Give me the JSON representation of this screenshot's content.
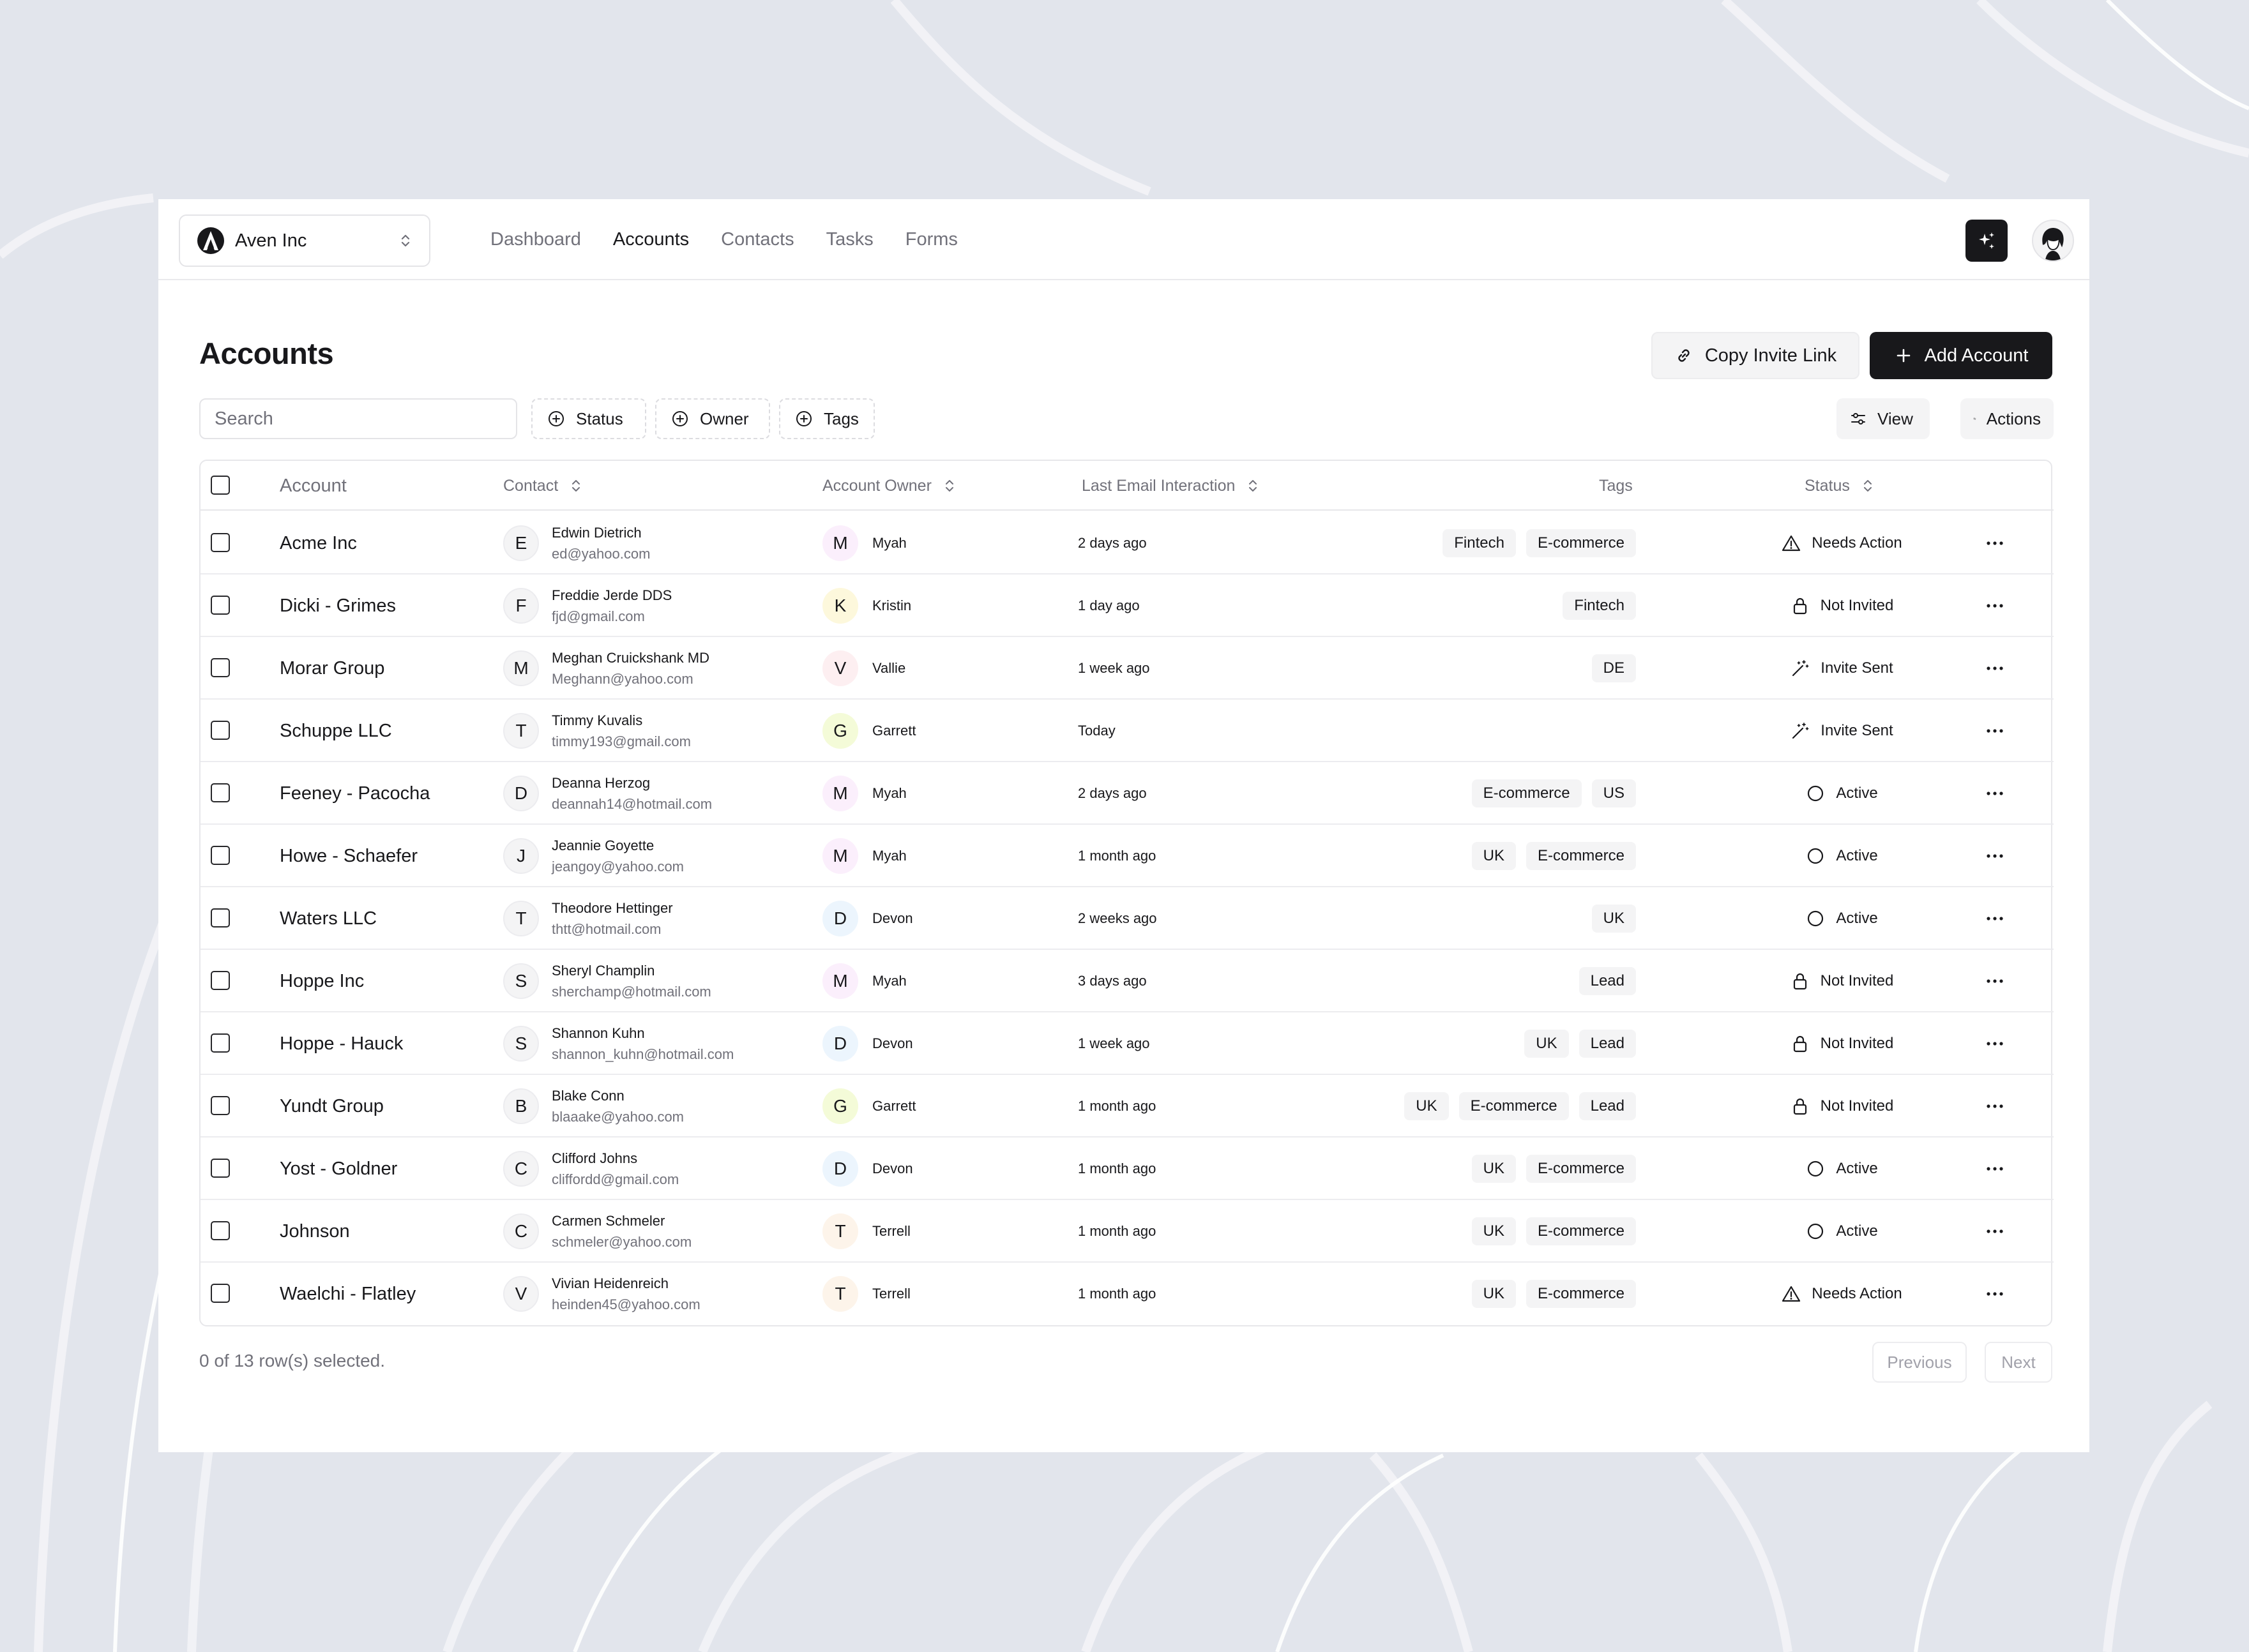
{
  "org": {
    "name": "Aven Inc"
  },
  "nav": {
    "links": [
      {
        "label": "Dashboard",
        "active": false
      },
      {
        "label": "Accounts",
        "active": true
      },
      {
        "label": "Contacts",
        "active": false
      },
      {
        "label": "Tasks",
        "active": false
      },
      {
        "label": "Forms",
        "active": false
      }
    ]
  },
  "page": {
    "title": "Accounts",
    "copy_invite_label": "Copy Invite Link",
    "add_account_label": "Add Account"
  },
  "filters": {
    "search_placeholder": "Search",
    "status_label": "Status",
    "owner_label": "Owner",
    "tags_label": "Tags",
    "view_label": "View",
    "actions_label": "Actions"
  },
  "table": {
    "columns": [
      "Account",
      "Contact",
      "Account Owner",
      "Last Email Interaction",
      "Tags",
      "Status"
    ],
    "rows": [
      {
        "account": "Acme Inc",
        "contact_initial": "E",
        "contact_name": "Edwin Dietrich",
        "contact_email": "ed@yahoo.com",
        "owner_initial": "M",
        "owner": "Myah",
        "owner_color": "#fbeffc",
        "last_email": "2 days ago",
        "tags": [
          "Fintech",
          "E-commerce"
        ],
        "status": "Needs Action",
        "status_icon": "warning-icon"
      },
      {
        "account": "Dicki - Grimes",
        "contact_initial": "F",
        "contact_name": "Freddie Jerde DDS",
        "contact_email": "fjd@gmail.com",
        "owner_initial": "K",
        "owner": "Kristin",
        "owner_color": "#fdf8dc",
        "last_email": "1 day ago",
        "tags": [
          "Fintech"
        ],
        "status": "Not Invited",
        "status_icon": "lock-icon"
      },
      {
        "account": "Morar Group",
        "contact_initial": "M",
        "contact_name": "Meghan Cruickshank MD",
        "contact_email": "Meghann@yahoo.com",
        "owner_initial": "V",
        "owner": "Vallie",
        "owner_color": "#fdeff1",
        "last_email": "1 week ago",
        "tags": [
          "DE"
        ],
        "status": "Invite Sent",
        "status_icon": "wand-icon"
      },
      {
        "account": "Schuppe LLC",
        "contact_initial": "T",
        "contact_name": "Timmy Kuvalis",
        "contact_email": "timmy193@gmail.com",
        "owner_initial": "G",
        "owner": "Garrett",
        "owner_color": "#f4fbd8",
        "last_email": "Today",
        "tags": [],
        "status": "Invite Sent",
        "status_icon": "wand-icon"
      },
      {
        "account": "Feeney - Pacocha",
        "contact_initial": "D",
        "contact_name": "Deanna Herzog",
        "contact_email": "deannah14@hotmail.com",
        "owner_initial": "M",
        "owner": "Myah",
        "owner_color": "#fbeffc",
        "last_email": "2 days ago",
        "tags": [
          "E-commerce",
          "US"
        ],
        "status": "Active",
        "status_icon": "circle-icon"
      },
      {
        "account": "Howe - Schaefer",
        "contact_initial": "J",
        "contact_name": "Jeannie Goyette",
        "contact_email": "jeangoy@yahoo.com",
        "owner_initial": "M",
        "owner": "Myah",
        "owner_color": "#fbeffc",
        "last_email": "1 month ago",
        "tags": [
          "UK",
          "E-commerce"
        ],
        "status": "Active",
        "status_icon": "circle-icon"
      },
      {
        "account": "Waters LLC",
        "contact_initial": "T",
        "contact_name": "Theodore Hettinger",
        "contact_email": "thtt@hotmail.com",
        "owner_initial": "D",
        "owner": "Devon",
        "owner_color": "#ecf5fd",
        "last_email": "2 weeks ago",
        "tags": [
          "UK"
        ],
        "status": "Active",
        "status_icon": "circle-icon"
      },
      {
        "account": "Hoppe Inc",
        "contact_initial": "S",
        "contact_name": "Sheryl Champlin",
        "contact_email": "sherchamp@hotmail.com",
        "owner_initial": "M",
        "owner": "Myah",
        "owner_color": "#fbeffc",
        "last_email": "3 days ago",
        "tags": [
          "Lead"
        ],
        "status": "Not Invited",
        "status_icon": "lock-icon"
      },
      {
        "account": "Hoppe - Hauck",
        "contact_initial": "S",
        "contact_name": "Shannon Kuhn",
        "contact_email": "shannon_kuhn@hotmail.com",
        "owner_initial": "D",
        "owner": "Devon",
        "owner_color": "#ecf5fd",
        "last_email": "1 week ago",
        "tags": [
          "UK",
          "Lead"
        ],
        "status": "Not Invited",
        "status_icon": "lock-icon"
      },
      {
        "account": "Yundt Group",
        "contact_initial": "B",
        "contact_name": "Blake Conn",
        "contact_email": "blaaake@yahoo.com",
        "owner_initial": "G",
        "owner": "Garrett",
        "owner_color": "#f4fbd8",
        "last_email": "1 month ago",
        "tags": [
          "UK",
          "E-commerce",
          "Lead"
        ],
        "status": "Not Invited",
        "status_icon": "lock-icon"
      },
      {
        "account": "Yost - Goldner",
        "contact_initial": "C",
        "contact_name": "Clifford Johns",
        "contact_email": "cliffordd@gmail.com",
        "owner_initial": "D",
        "owner": "Devon",
        "owner_color": "#ecf5fd",
        "last_email": "1 month ago",
        "tags": [
          "UK",
          "E-commerce"
        ],
        "status": "Active",
        "status_icon": "circle-icon"
      },
      {
        "account": "Johnson",
        "contact_initial": "C",
        "contact_name": "Carmen Schmeler",
        "contact_email": "schmeler@yahoo.com",
        "owner_initial": "T",
        "owner": "Terrell",
        "owner_color": "#fdf4ea",
        "last_email": "1 month ago",
        "tags": [
          "UK",
          "E-commerce"
        ],
        "status": "Active",
        "status_icon": "circle-icon"
      },
      {
        "account": "Waelchi - Flatley",
        "contact_initial": "V",
        "contact_name": "Vivian Heidenreich",
        "contact_email": "heinden45@yahoo.com",
        "owner_initial": "T",
        "owner": "Terrell",
        "owner_color": "#fdf4ea",
        "last_email": "1 month ago",
        "tags": [
          "UK",
          "E-commerce"
        ],
        "status": "Needs Action",
        "status_icon": "warning-icon"
      }
    ]
  },
  "footer": {
    "selection": "0 of 13 row(s) selected.",
    "previous": "Previous",
    "next": "Next"
  }
}
